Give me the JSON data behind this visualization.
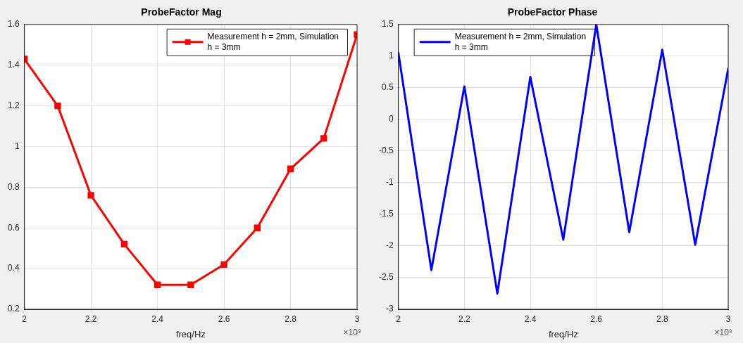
{
  "chart_data": [
    {
      "type": "line",
      "title": "ProbeFactor Mag",
      "xlabel": "freq/Hz",
      "x": [
        2,
        2.1,
        2.2,
        2.3,
        2.4,
        2.5,
        2.6,
        2.7,
        2.8,
        2.9,
        3
      ],
      "series": [
        {
          "name": "Measurement h = 2mm, Simulation h = 3mm",
          "color": "#ff0000",
          "values": [
            1.43,
            1.2,
            0.76,
            0.52,
            0.32,
            0.32,
            0.42,
            0.6,
            0.89,
            1.04,
            1.55
          ]
        }
      ],
      "xlim": [
        2,
        3
      ],
      "xticks": [
        2,
        2.2,
        2.4,
        2.6,
        2.8,
        3
      ],
      "ylim": [
        0.2,
        1.6
      ],
      "yticks": [
        0.2,
        0.4,
        0.6,
        0.8,
        1,
        1.2,
        1.4,
        1.6
      ],
      "grid": true,
      "legend": "top right",
      "marker": "square",
      "line_style": "solid",
      "annotations": [
        "×10⁹"
      ]
    },
    {
      "type": "line",
      "title": "ProbeFactor Phase",
      "xlabel": "freq/Hz",
      "x": [
        2,
        2.1,
        2.2,
        2.3,
        2.4,
        2.5,
        2.6,
        2.7,
        2.8,
        2.9,
        3
      ],
      "series": [
        {
          "name": "Measurement h = 2mm, Simulation h = 3mm",
          "color": "#0000ff",
          "values": [
            1.05,
            -2.38,
            0.52,
            -2.75,
            0.67,
            -1.9,
            1.5,
            -1.78,
            1.1,
            -1.98,
            0.8
          ]
        }
      ],
      "xlim": [
        2,
        3
      ],
      "xticks": [
        2,
        2.2,
        2.4,
        2.6,
        2.8,
        3
      ],
      "ylim": [
        -3,
        1.5
      ],
      "yticks": [
        -3,
        -2.5,
        -2,
        -1.5,
        -1,
        -0.5,
        0,
        0.5,
        1,
        1.5
      ],
      "grid": true,
      "legend": "top left",
      "marker": "none",
      "line_style": "solid",
      "annotations": [
        "×10⁹"
      ]
    }
  ]
}
